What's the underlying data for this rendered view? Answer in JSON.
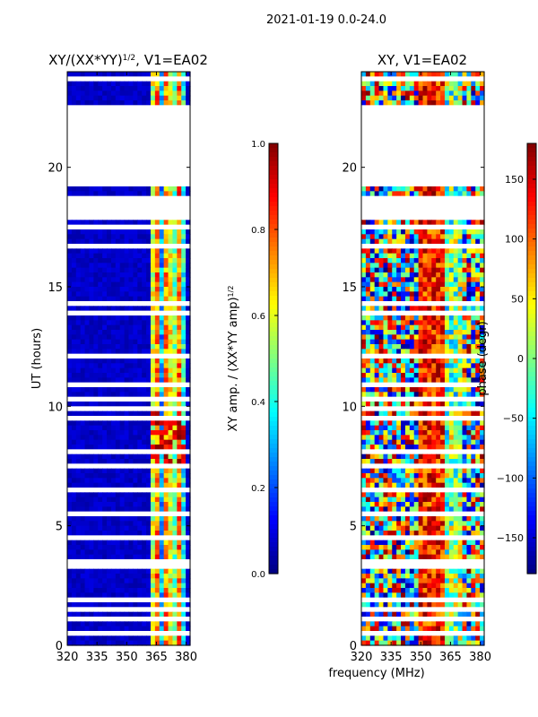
{
  "suptitle": "2021-01-19 0.0-24.0",
  "shared_xlabel": "frequency (MHz)",
  "chart_data": [
    {
      "type": "heatmap",
      "title": "XY/(XX*YY)",
      "title_power": "1/2",
      "title_suffix": ", V1=EA02",
      "xlabel": "",
      "ylabel": "UT (hours)",
      "xlim": [
        320,
        382
      ],
      "ylim": [
        0,
        24
      ],
      "xticks": [
        320,
        335,
        350,
        365,
        380
      ],
      "yticks": [
        0,
        5,
        10,
        15,
        20
      ],
      "colorbar": {
        "label": "XY amp. / (XX*YY amp)",
        "label_power": "1/2",
        "range": [
          0.0,
          1.0
        ],
        "ticks": [
          "0.0",
          "0.2",
          "0.4",
          "0.6",
          "0.8",
          "1.0"
        ],
        "colormap": "jet"
      },
      "bright_band_mhz": [
        362,
        380
      ]
    },
    {
      "type": "heatmap",
      "title": "XY, V1=EA02",
      "xlabel": "frequency (MHz)",
      "ylabel": "",
      "xlim": [
        320,
        382
      ],
      "ylim": [
        0,
        24
      ],
      "xticks": [
        320,
        335,
        350,
        365,
        380
      ],
      "yticks": [
        0,
        5,
        10,
        15,
        20
      ],
      "colorbar": {
        "label": "phase (degr)",
        "range": [
          -180,
          180
        ],
        "ticks": [
          "150",
          "100",
          "50",
          "0",
          "−50",
          "−100",
          "−150"
        ],
        "tick_values": [
          150,
          100,
          50,
          0,
          -50,
          -100,
          -150
        ],
        "colormap": "jet"
      }
    }
  ],
  "flagged_hours": [
    [
      23.7,
      23.85
    ],
    [
      22.3,
      22.5
    ],
    [
      21.9,
      22.2
    ],
    [
      21.0,
      21.9
    ],
    [
      20.9,
      21.0
    ],
    [
      20.3,
      20.85
    ],
    [
      19.6,
      20.3
    ],
    [
      19.2,
      19.5
    ],
    [
      18.0,
      18.85
    ],
    [
      17.85,
      18.0
    ],
    [
      17.4,
      17.55
    ],
    [
      16.6,
      16.7
    ],
    [
      14.2,
      14.3
    ],
    [
      13.85,
      13.95
    ],
    [
      12.0,
      12.1
    ],
    [
      10.9,
      11.0
    ],
    [
      10.3,
      10.4
    ],
    [
      9.85,
      10.0
    ],
    [
      9.5,
      9.55
    ],
    [
      8.75,
      8.85
    ],
    [
      8.0,
      8.1
    ],
    [
      7.5,
      7.6
    ],
    [
      6.95,
      7.05
    ],
    [
      6.45,
      6.55
    ],
    [
      5.9,
      6.0
    ],
    [
      5.4,
      5.5
    ],
    [
      4.9,
      5.0
    ],
    [
      4.4,
      4.5
    ],
    [
      3.9,
      4.0
    ],
    [
      3.3,
      3.55
    ],
    [
      3.0,
      3.1
    ],
    [
      2.55,
      2.65
    ],
    [
      2.2,
      2.3
    ],
    [
      1.85,
      1.95
    ],
    [
      1.45,
      1.55
    ],
    [
      1.1,
      1.2
    ],
    [
      0.75,
      0.85
    ],
    [
      0.4,
      0.5
    ]
  ]
}
